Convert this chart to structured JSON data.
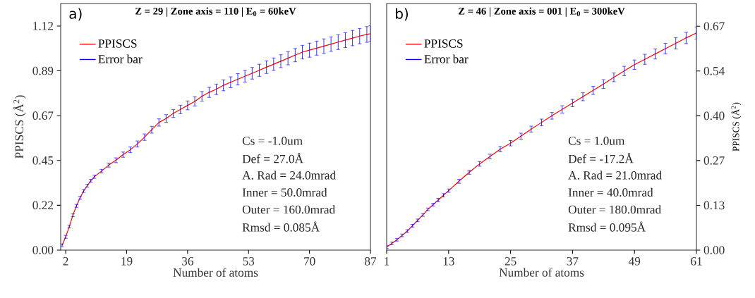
{
  "chart_data": [
    {
      "type": "line",
      "title": "Z = 29 | Zone axis = 110 | E$_{0}$ = 60keV",
      "xlabel": "Number of atoms",
      "ylabel": "PPISCS (Å$^{2}$)",
      "annotations": [
        "a)",
        "Cs = -1.0um",
        "Def = 27.0Å",
        "A. Rad = 24.0mrad",
        "Inner = 50.0mrad",
        "Outer = 160.0mrad",
        "Rmsd = 0.085Å",
        "Error bar"
      ],
      "x": [
        1,
        2,
        3,
        4,
        5,
        6,
        7,
        8,
        9,
        10,
        12,
        14,
        16,
        18,
        20,
        22,
        24,
        26,
        28,
        30,
        32,
        34,
        36,
        38,
        40,
        42,
        44,
        46,
        48,
        50,
        52,
        54,
        56,
        58,
        60,
        62,
        64,
        66,
        68,
        70,
        72,
        74,
        76,
        78,
        80,
        82,
        84,
        86,
        87
      ],
      "series": [
        {
          "name": "PPISCS",
          "color": "#ff0000",
          "values": [
            0.024,
            0.066,
            0.117,
            0.173,
            0.22,
            0.26,
            0.294,
            0.32,
            0.345,
            0.365,
            0.393,
            0.423,
            0.447,
            0.475,
            0.499,
            0.528,
            0.562,
            0.599,
            0.635,
            0.655,
            0.68,
            0.7,
            0.72,
            0.74,
            0.765,
            0.785,
            0.8,
            0.82,
            0.835,
            0.85,
            0.865,
            0.88,
            0.895,
            0.91,
            0.925,
            0.94,
            0.955,
            0.97,
            0.985,
            0.995,
            1.005,
            1.015,
            1.025,
            1.035,
            1.045,
            1.055,
            1.065,
            1.073,
            1.077
          ],
          "errors": [
            0.007,
            0.007,
            0.007,
            0.007,
            0.007,
            0.007,
            0.007,
            0.007,
            0.007,
            0.008,
            0.009,
            0.01,
            0.012,
            0.013,
            0.014,
            0.015,
            0.016,
            0.017,
            0.018,
            0.019,
            0.02,
            0.021,
            0.022,
            0.023,
            0.024,
            0.025,
            0.026,
            0.027,
            0.027,
            0.028,
            0.029,
            0.029,
            0.03,
            0.031,
            0.031,
            0.032,
            0.033,
            0.033,
            0.034,
            0.035,
            0.035,
            0.036,
            0.036,
            0.037,
            0.037,
            0.038,
            0.038,
            0.039,
            0.039
          ]
        }
      ],
      "xlim": [
        0.6,
        87
      ],
      "xticks": [
        2,
        19,
        36,
        53,
        70,
        87
      ],
      "ylim": [
        0,
        1.227
      ],
      "yticks": [
        {
          "value": 0,
          "label": "0.00"
        },
        {
          "value": 0.223,
          "label": "0.22"
        },
        {
          "value": 0.446,
          "label": "0.45"
        },
        {
          "value": 0.669,
          "label": "0.67"
        },
        {
          "value": 0.892,
          "label": "0.89"
        },
        {
          "value": 1.115,
          "label": "1.12"
        }
      ],
      "legend": "top left",
      "grid": false,
      "marker": "none",
      "line_style": "solid"
    },
    {
      "type": "line",
      "title": "Z = 46 | Zone axis = 001 | E$_{0}$ = 300keV",
      "xlabel": "Number of atoms",
      "y2label": "PPISCS (Å$^{2}$)",
      "annotations": [
        "b)",
        "Cs = 1.0um",
        "Def = -17.2Å",
        "A. Rad = 21.0mrad",
        "Inner = 40.0mrad",
        "Outer = 180.0mrad",
        "Rmsd = 0.095Å",
        "Error bar"
      ],
      "x": [
        1,
        2,
        3,
        4,
        5,
        6,
        7,
        8,
        9,
        10,
        11,
        12,
        13,
        15,
        17,
        19,
        21,
        23,
        25,
        27,
        29,
        31,
        33,
        35,
        37,
        39,
        41,
        43,
        45,
        47,
        49,
        51,
        53,
        55,
        57,
        59,
        61
      ],
      "series": [
        {
          "name": "PPISCS",
          "color": "#ff0000",
          "axis": "y2",
          "values": [
            0.009,
            0.02,
            0.031,
            0.044,
            0.057,
            0.073,
            0.089,
            0.105,
            0.122,
            0.136,
            0.15,
            0.164,
            0.178,
            0.206,
            0.233,
            0.258,
            0.28,
            0.302,
            0.32,
            0.341,
            0.362,
            0.382,
            0.402,
            0.421,
            0.44,
            0.459,
            0.478,
            0.497,
            0.517,
            0.536,
            0.555,
            0.571,
            0.587,
            0.603,
            0.619,
            0.635,
            0.65
          ],
          "errors": [
            0.004,
            0.004,
            0.004,
            0.004,
            0.004,
            0.004,
            0.004,
            0.004,
            0.004,
            0.004,
            0.005,
            0.005,
            0.005,
            0.006,
            0.006,
            0.007,
            0.007,
            0.008,
            0.008,
            0.009,
            0.009,
            0.01,
            0.01,
            0.011,
            0.011,
            0.012,
            0.012,
            0.013,
            0.013,
            0.014,
            0.014,
            0.015,
            0.015,
            0.016,
            0.017,
            0.017,
            0.018
          ]
        }
      ],
      "xlim": [
        1,
        61
      ],
      "xticks": [
        1,
        13,
        25,
        37,
        49,
        61
      ],
      "y2lim": [
        0,
        0.738
      ],
      "y2ticks": [
        {
          "value": 0,
          "label": "0.00"
        },
        {
          "value": 0.134,
          "label": "0.13"
        },
        {
          "value": 0.268,
          "label": "0.27"
        },
        {
          "value": 0.402,
          "label": "0.40"
        },
        {
          "value": 0.536,
          "label": "0.54"
        },
        {
          "value": 0.67,
          "label": "0.67"
        }
      ],
      "legend": "top left",
      "grid": false,
      "marker": "none",
      "line_style": "solid"
    }
  ]
}
